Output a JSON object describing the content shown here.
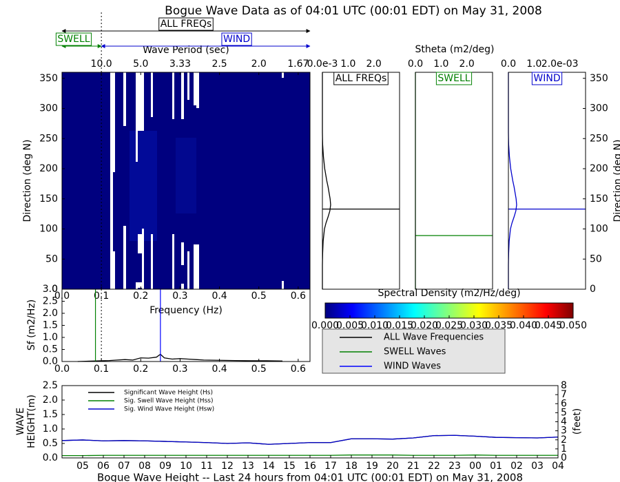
{
  "chart_data": [
    {
      "type": "heatmap",
      "title": "Bogue Wave Data as of 04:01 UTC (00:01 EDT) on May 31, 2008",
      "xlabel": "Frequency (Hz)",
      "ylabel": "Direction (deg N)",
      "top_xlabel": "Wave Period (sec)",
      "xlim": [
        0,
        0.63
      ],
      "ylim": [
        0,
        360
      ],
      "xticks": [
        {
          "value": 0,
          "label": "0.0"
        },
        0.1,
        0.2,
        0.3,
        0.4,
        0.5,
        0.6
      ],
      "yticks": [
        0,
        50,
        100,
        150,
        200,
        250,
        300,
        350
      ],
      "top_xticks": [
        {
          "value": 0.1,
          "label": "10.0"
        },
        {
          "value": 0.2,
          "label": "5.0"
        },
        {
          "value": 0.3,
          "label": "3.33"
        },
        {
          "value": 0.4,
          "label": "2.5"
        },
        {
          "value": 0.5,
          "label": "2.0"
        },
        {
          "value": 0.6,
          "label": "1.67"
        }
      ],
      "divider": 0.1,
      "bands": [
        {
          "label": "ALL FREQs",
          "color": "#000000"
        },
        {
          "label": "SWELL",
          "color": "#008000"
        },
        {
          "label": "WIND",
          "color": "#0000cc"
        }
      ]
    },
    {
      "type": "profile",
      "label": "ALL FREQs",
      "color": "#000000",
      "xlim": [
        0,
        3
      ],
      "ylim": [
        0,
        360
      ],
      "xticks": [
        {
          "value": 0,
          "label": "0.0e-3"
        },
        {
          "value": 1,
          "label": "1.0"
        },
        {
          "value": 2,
          "label": "2.0"
        }
      ],
      "directions": [
        0,
        40,
        60,
        80,
        100,
        110,
        120,
        130,
        140,
        150,
        160,
        170,
        180,
        200,
        220,
        240,
        260,
        300,
        360
      ],
      "values": [
        0,
        0,
        0.01,
        0.03,
        0.08,
        0.14,
        0.22,
        0.29,
        0.32,
        0.3,
        0.26,
        0.22,
        0.17,
        0.09,
        0.04,
        0.01,
        0,
        0,
        0
      ],
      "peak": 133
    },
    {
      "type": "profile",
      "label": "SWELL",
      "color": "#008000",
      "axis_title": "Stheta (m2/deg)",
      "xlim": [
        0,
        3
      ],
      "ylim": [
        0,
        360
      ],
      "xticks": [
        {
          "value": 0,
          "label": "0.0"
        },
        {
          "value": 1,
          "label": "1.0"
        },
        {
          "value": 2,
          "label": "2.0"
        }
      ],
      "directions": [
        0,
        360
      ],
      "values": [
        0,
        0
      ],
      "peak": 89
    },
    {
      "type": "profile",
      "label": "WIND",
      "color": "#0000cc",
      "ylabel": "Direction (deg N)",
      "xlim": [
        0,
        3
      ],
      "ylim": [
        0,
        360
      ],
      "xticks": [
        {
          "value": 0,
          "label": "0.0"
        },
        {
          "value": 1,
          "label": "1.0"
        },
        {
          "value": 2,
          "label": "2.0e-03"
        }
      ],
      "yticks": [
        0,
        50,
        100,
        150,
        200,
        250,
        300,
        350
      ],
      "directions": [
        0,
        40,
        60,
        80,
        100,
        110,
        120,
        130,
        140,
        150,
        160,
        170,
        180,
        200,
        220,
        240,
        260,
        300,
        360
      ],
      "values": [
        0,
        0,
        0.01,
        0.03,
        0.08,
        0.14,
        0.22,
        0.29,
        0.32,
        0.3,
        0.26,
        0.22,
        0.17,
        0.09,
        0.04,
        0.01,
        0,
        0,
        0
      ],
      "peak": 133
    },
    {
      "type": "colorbar",
      "title": "Spectral Density (m2/Hz/deg)",
      "lim": [
        0,
        0.05
      ],
      "ticks": [
        {
          "value": 0,
          "label": "0.000"
        },
        {
          "value": 0.005,
          "label": "0.005"
        },
        {
          "value": 0.01,
          "label": "0.010"
        },
        {
          "value": 0.015,
          "label": "0.015"
        },
        {
          "value": 0.02,
          "label": "0.020"
        },
        {
          "value": 0.025,
          "label": "0.025"
        },
        {
          "value": 0.03,
          "label": "0.030"
        },
        {
          "value": 0.035,
          "label": "0.035"
        },
        {
          "value": 0.04,
          "label": "0.040"
        },
        {
          "value": 0.045,
          "label": "0.045"
        },
        {
          "value": 0.05,
          "label": "0.050"
        }
      ]
    },
    {
      "type": "spectrum",
      "ylabel": "Sf (m2/Hz)",
      "xlim": [
        0,
        0.63
      ],
      "ylim": [
        0,
        3
      ],
      "xticks": [
        {
          "value": 0,
          "label": "0.0"
        },
        0.1,
        0.2,
        0.3,
        0.4,
        0.5,
        0.6
      ],
      "yticks": [
        {
          "value": 0,
          "label": "0.0"
        },
        0.5,
        {
          "value": 1,
          "label": "1.0"
        },
        1.5,
        {
          "value": 2,
          "label": "2.0"
        },
        2.5,
        {
          "value": 3,
          "label": "3.0"
        }
      ],
      "divider": 0.1,
      "series": [
        {
          "name": "ALL Wave Frequencies",
          "color": "#000000",
          "x": [
            0.04,
            0.06,
            0.08,
            0.1,
            0.12,
            0.14,
            0.16,
            0.18,
            0.2,
            0.22,
            0.24,
            0.25,
            0.26,
            0.28,
            0.3,
            0.32,
            0.34,
            0.36,
            0.4,
            0.44,
            0.48,
            0.52,
            0.56
          ],
          "values": [
            0,
            0.01,
            0.02,
            0.03,
            0.04,
            0.06,
            0.08,
            0.06,
            0.15,
            0.14,
            0.18,
            0.3,
            0.15,
            0.1,
            0.12,
            0.1,
            0.08,
            0.06,
            0.05,
            0.04,
            0.03,
            0.03,
            0.02
          ]
        }
      ],
      "vlines": [
        {
          "name": "SWELL Waves",
          "color": "#008000",
          "value": 0.085
        },
        {
          "name": "WIND Waves",
          "color": "#0000ff",
          "value": 0.25
        }
      ]
    },
    {
      "type": "line",
      "title": "Bogue Wave Height -- Last 24 hours from 04:01 UTC (00:01 EDT) on May 31, 2008",
      "ylabel": [
        "WAVE",
        "HEIGHT(m)"
      ],
      "y2label": "(feet)",
      "xlim": [
        0,
        24
      ],
      "ylim": [
        0,
        2.5
      ],
      "y2lim": [
        0,
        8
      ],
      "xticks": [
        {
          "value": 1,
          "label": "05"
        },
        {
          "value": 2,
          "label": "06"
        },
        {
          "value": 3,
          "label": "07"
        },
        {
          "value": 4,
          "label": "08"
        },
        {
          "value": 5,
          "label": "09"
        },
        {
          "value": 6,
          "label": "10"
        },
        {
          "value": 7,
          "label": "11"
        },
        {
          "value": 8,
          "label": "12"
        },
        {
          "value": 9,
          "label": "13"
        },
        {
          "value": 10,
          "label": "14"
        },
        {
          "value": 11,
          "label": "15"
        },
        {
          "value": 12,
          "label": "16"
        },
        {
          "value": 13,
          "label": "17"
        },
        {
          "value": 14,
          "label": "18"
        },
        {
          "value": 15,
          "label": "19"
        },
        {
          "value": 16,
          "label": "20"
        },
        {
          "value": 17,
          "label": "21"
        },
        {
          "value": 18,
          "label": "22"
        },
        {
          "value": 19,
          "label": "23"
        },
        {
          "value": 20,
          "label": "00"
        },
        {
          "value": 21,
          "label": "01"
        },
        {
          "value": 22,
          "label": "02"
        },
        {
          "value": 23,
          "label": "03"
        },
        {
          "value": 24,
          "label": "04"
        }
      ],
      "yticks": [
        {
          "value": 0,
          "label": "0.0"
        },
        0.5,
        {
          "value": 1,
          "label": "1.0"
        },
        1.5,
        {
          "value": 2,
          "label": "2.0"
        },
        2.5
      ],
      "y2ticks": [
        0,
        1,
        2,
        3,
        4,
        5,
        6,
        7,
        8
      ],
      "x": [
        0,
        1,
        2,
        3,
        4,
        5,
        6,
        7,
        8,
        9,
        10,
        11,
        12,
        13,
        14,
        15,
        16,
        17,
        18,
        19,
        20,
        21,
        22,
        23,
        24
      ],
      "series": [
        {
          "name": "Significant Wave Height (Hs)",
          "color": "#000000",
          "values": [
            0.6,
            0.62,
            0.59,
            0.6,
            0.59,
            0.57,
            0.55,
            0.53,
            0.5,
            0.52,
            0.47,
            0.5,
            0.53,
            0.53,
            0.66,
            0.66,
            0.65,
            0.69,
            0.77,
            0.78,
            0.75,
            0.71,
            0.7,
            0.69,
            0.72
          ]
        },
        {
          "name": "Sig. Swell Wave Height (Hss)",
          "color": "#008000",
          "values": [
            0.08,
            0.08,
            0.09,
            0.09,
            0.09,
            0.09,
            0.09,
            0.09,
            0.09,
            0.09,
            0.09,
            0.09,
            0.09,
            0.09,
            0.1,
            0.1,
            0.1,
            0.09,
            0.09,
            0.09,
            0.1,
            0.09,
            0.09,
            0.09,
            0.09
          ]
        },
        {
          "name": "Sig. Wind Wave Height (Hsw)",
          "color": "#0000cc",
          "values": [
            0.6,
            0.62,
            0.59,
            0.6,
            0.59,
            0.57,
            0.55,
            0.53,
            0.5,
            0.52,
            0.47,
            0.5,
            0.53,
            0.53,
            0.66,
            0.66,
            0.65,
            0.69,
            0.77,
            0.78,
            0.75,
            0.71,
            0.7,
            0.69,
            0.72
          ]
        }
      ]
    }
  ]
}
